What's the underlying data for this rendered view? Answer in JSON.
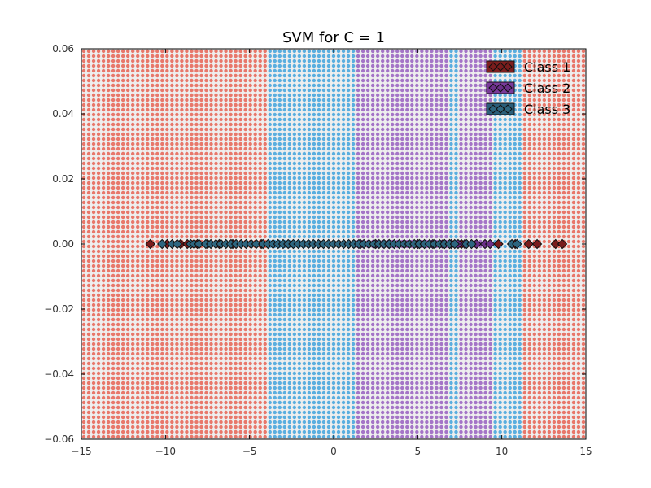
{
  "chart_data": {
    "type": "scatter",
    "title": "SVM for C = 1",
    "xlabel": "",
    "ylabel": "",
    "xlim": [
      -15,
      15
    ],
    "ylim": [
      -0.06,
      0.06
    ],
    "x_ticks": [
      "−15",
      "−10",
      "−5",
      "0",
      "5",
      "10",
      "15"
    ],
    "y_ticks": [
      "0.06",
      "0.04",
      "0.02",
      "0.00",
      "−0.02",
      "−0.04",
      "−0.06"
    ],
    "grid": false,
    "legend_position": "top-right",
    "decision_regions": [
      {
        "class": "Class 1",
        "x_from": -15,
        "x_to": -3.9
      },
      {
        "class": "Class 3",
        "x_from": -3.9,
        "x_to": -2.0
      },
      {
        "class": "Class 1",
        "x_from": -2.0,
        "x_to": -1.8
      },
      {
        "class": "Class 3",
        "x_from": -1.8,
        "x_to": 1.4
      },
      {
        "class": "Class 2",
        "x_from": 1.4,
        "x_to": 6.8
      },
      {
        "class": "Class 3",
        "x_from": 6.8,
        "x_to": 7.4
      },
      {
        "class": "Class 2",
        "x_from": 7.4,
        "x_to": 9.6
      },
      {
        "class": "Class 3",
        "x_from": 9.6,
        "x_to": 11.3
      },
      {
        "class": "Class 1",
        "x_from": 11.3,
        "x_to": 15
      }
    ],
    "series": [
      {
        "name": "Class 1",
        "x": [
          -10.9,
          -9.9,
          -9.1,
          -8.7,
          -8.1,
          -7.5,
          -6.8,
          -6.0,
          -4.3,
          7.6,
          9.8,
          10.8,
          11.6,
          12.1,
          13.2,
          13.6
        ],
        "y": [
          0,
          0,
          0,
          0,
          0,
          0,
          0,
          0,
          0,
          0,
          0,
          0,
          0,
          0,
          0,
          0
        ]
      },
      {
        "name": "Class 2",
        "x": [
          1.6,
          2.5,
          3.3,
          4.2,
          5.0,
          5.9,
          6.5,
          7.0,
          7.4,
          7.8,
          8.5,
          9.0,
          9.3
        ],
        "y": [
          0,
          0,
          0,
          0,
          0,
          0,
          0,
          0,
          0,
          0,
          0,
          0,
          0
        ]
      },
      {
        "name": "Class 3",
        "x": [
          -10.2,
          -9.6,
          -9.3,
          -8.5,
          -8.3,
          -8.0,
          -7.6,
          -7.3,
          -7.0,
          -6.7,
          -6.4,
          -6.1,
          -5.8,
          -5.5,
          -5.2,
          -4.9,
          -4.6,
          -4.2,
          -3.9,
          -3.6,
          -3.3,
          -3.0,
          -2.7,
          -2.4,
          -2.1,
          -1.8,
          -1.5,
          -1.2,
          -0.9,
          -0.6,
          -0.3,
          0.0,
          0.3,
          0.6,
          0.9,
          1.2,
          1.5,
          1.8,
          2.1,
          2.4,
          2.7,
          3.0,
          3.3,
          3.6,
          3.9,
          4.2,
          4.5,
          4.8,
          5.1,
          5.4,
          5.7,
          6.0,
          6.3,
          6.6,
          6.9,
          7.2,
          7.9,
          8.2,
          10.6,
          10.9
        ],
        "y": [
          0,
          0,
          0,
          0,
          0,
          0,
          0,
          0,
          0,
          0,
          0,
          0,
          0,
          0,
          0,
          0,
          0,
          0,
          0,
          0,
          0,
          0,
          0,
          0,
          0,
          0,
          0,
          0,
          0,
          0,
          0,
          0,
          0,
          0,
          0,
          0,
          0,
          0,
          0,
          0,
          0,
          0,
          0,
          0,
          0,
          0,
          0,
          0,
          0,
          0,
          0,
          0,
          0,
          0,
          0,
          0,
          0,
          0,
          0,
          0
        ]
      }
    ],
    "colors": {
      "Class 1": {
        "region": "#e8776a",
        "marker": "#7a1c1c",
        "legend_fill": "#7f1f1f"
      },
      "Class 2": {
        "region": "#a474c7",
        "marker": "#6b2f8a",
        "legend_fill": "#7a3a9a"
      },
      "Class 3": {
        "region": "#5aaedf",
        "marker": "#2d6680",
        "legend_fill": "#2a5f7a"
      },
      "marker_edge": "#111111",
      "frame": "#000000",
      "plot_bg": "#eeeeee"
    }
  }
}
